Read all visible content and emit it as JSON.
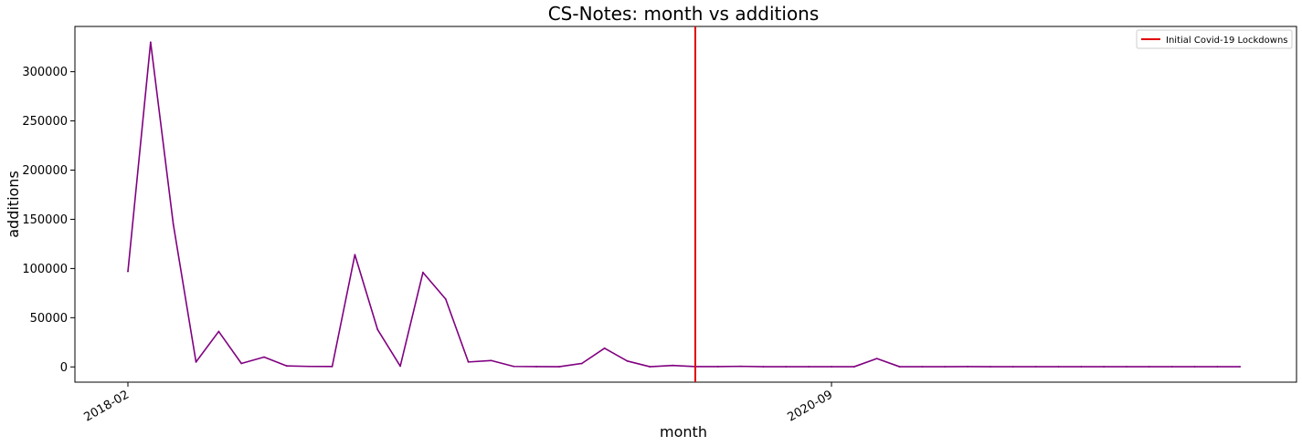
{
  "chart_data": {
    "type": "line",
    "title": "CS-Notes: month vs additions",
    "xlabel": "month",
    "ylabel": "additions",
    "x": [
      "2018-02",
      "2018-03",
      "2018-04",
      "2018-05",
      "2018-06",
      "2018-07",
      "2018-08",
      "2018-09",
      "2018-10",
      "2018-11",
      "2018-12",
      "2019-01",
      "2019-02",
      "2019-03",
      "2019-04",
      "2019-05",
      "2019-06",
      "2019-07",
      "2019-08",
      "2019-09",
      "2019-10",
      "2019-11",
      "2019-12",
      "2020-01",
      "2020-02",
      "2020-03",
      "2020-04",
      "2020-05",
      "2020-06",
      "2020-07",
      "2020-08",
      "2020-09",
      "2020-10",
      "2020-11",
      "2020-12",
      "2021-01",
      "2021-02",
      "2021-03",
      "2021-04",
      "2021-05",
      "2021-06",
      "2021-07",
      "2021-08",
      "2021-09",
      "2021-10",
      "2021-11",
      "2021-12",
      "2022-01",
      "2022-02",
      "2022-03"
    ],
    "series": [
      {
        "values": [
          97000,
          330000,
          145000,
          5000,
          36000,
          3500,
          10000,
          1000,
          500,
          400,
          114000,
          38000,
          800,
          96000,
          69000,
          5000,
          6500,
          500,
          300,
          200,
          3500,
          19000,
          6000,
          200,
          1500,
          300,
          300,
          600,
          200,
          200,
          200,
          200,
          200,
          8500,
          200,
          200,
          200,
          300,
          200,
          200,
          200,
          200,
          200,
          200,
          200,
          200,
          200,
          200,
          200,
          200
        ],
        "color": "#800080"
      }
    ],
    "xticks": [
      "2018-02",
      "2020-09"
    ],
    "yticks": [
      0,
      50000,
      100000,
      150000,
      200000,
      250000,
      300000
    ],
    "ylim": [
      -15500,
      346000
    ],
    "grid": false,
    "annotations": [
      {
        "type": "vline",
        "x": "2020-03",
        "label": "Initial Covid-19 Lockdowns",
        "color": "#e00000"
      }
    ],
    "legend": {
      "placement": "top-right",
      "entries": [
        {
          "label": "Initial Covid-19 Lockdowns",
          "color": "#e00000"
        }
      ]
    }
  }
}
